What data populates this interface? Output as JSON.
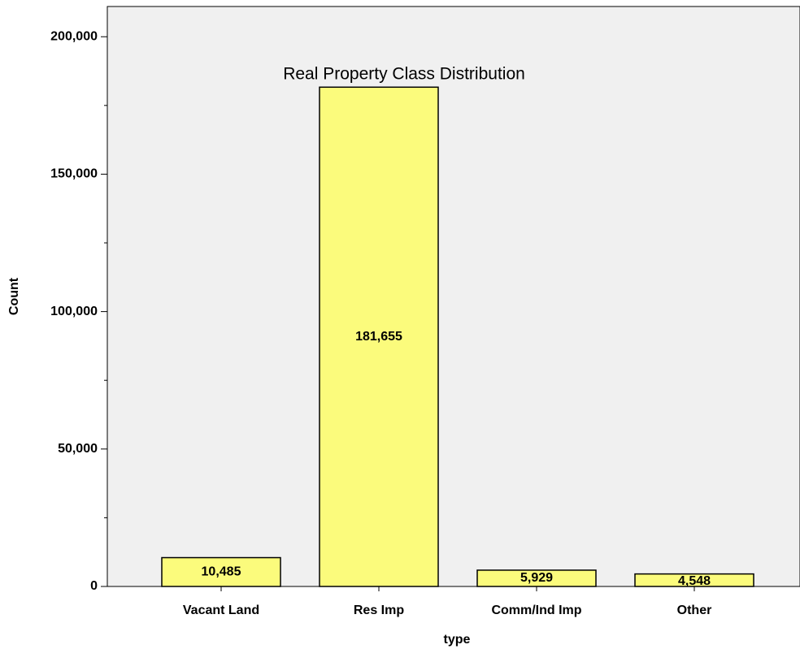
{
  "chart_data": {
    "type": "bar",
    "title": "Real Property Class Distribution",
    "x_label": "type",
    "y_label": "Count",
    "categories": [
      "Vacant Land",
      "Res Imp",
      "Comm/Ind Imp",
      "Other"
    ],
    "values": [
      10485,
      181655,
      5929,
      4548
    ],
    "value_labels": [
      "10,485",
      "181,655",
      "5,929",
      "4,548"
    ],
    "color": "#fbfb7c",
    "ylim": [
      0,
      211000
    ],
    "yticks": [
      0,
      {
        "value": 50000,
        "label": "50,000"
      },
      {
        "value": 100000,
        "label": "100,000"
      },
      {
        "value": 150000,
        "label": "150,000"
      },
      {
        "value": 200000,
        "label": "200,000"
      }
    ],
    "yminor_ticks": [
      25000,
      75000,
      125000,
      175000
    ],
    "grid": false
  }
}
